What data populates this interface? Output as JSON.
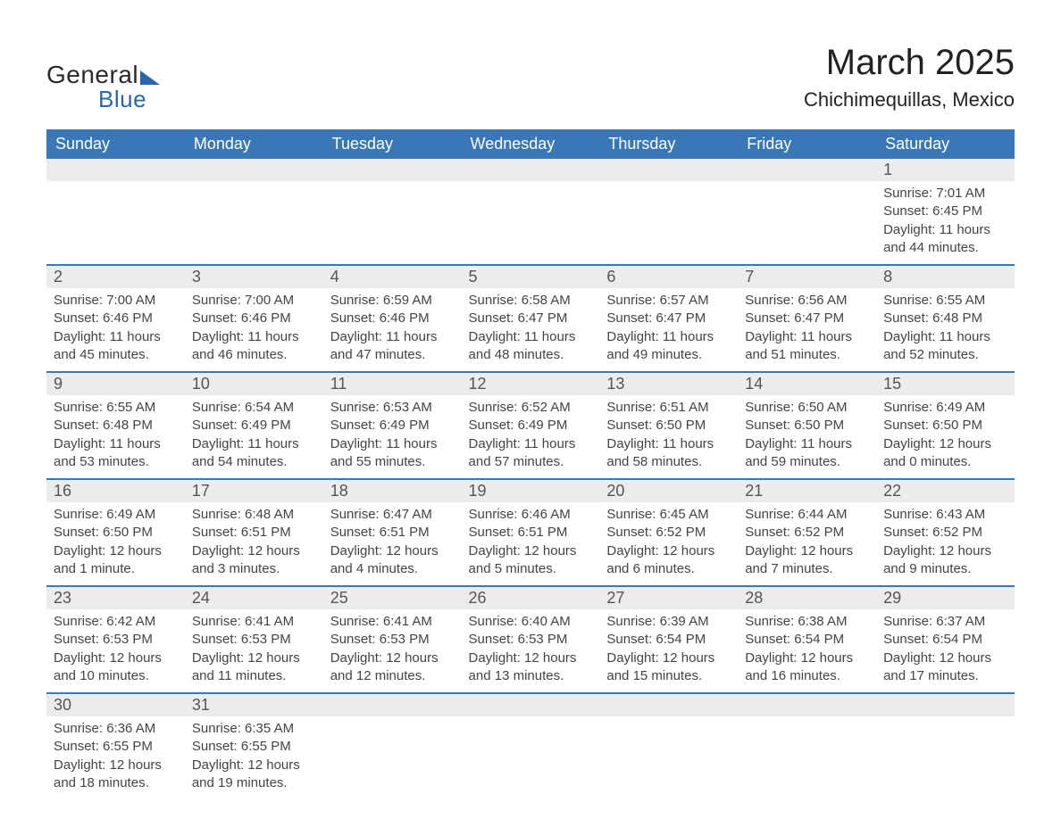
{
  "logo": {
    "word1": "General",
    "word2": "Blue"
  },
  "title": "March 2025",
  "location": "Chichimequillas, Mexico",
  "colors": {
    "header_bg": "#3a77b7",
    "header_fg": "#ffffff",
    "row_separator": "#3a77b7",
    "daynum_bg": "#ececec",
    "text": "#333333",
    "logo_accent": "#2a67a8"
  },
  "typography": {
    "title_fontsize": 40,
    "location_fontsize": 22,
    "weekday_fontsize": 18,
    "daynum_fontsize": 18,
    "body_fontsize": 15
  },
  "weekdays": [
    "Sunday",
    "Monday",
    "Tuesday",
    "Wednesday",
    "Thursday",
    "Friday",
    "Saturday"
  ],
  "weeks": [
    [
      null,
      null,
      null,
      null,
      null,
      null,
      {
        "n": "1",
        "sunrise": "7:01 AM",
        "sunset": "6:45 PM",
        "daylight": "11 hours and 44 minutes."
      }
    ],
    [
      {
        "n": "2",
        "sunrise": "7:00 AM",
        "sunset": "6:46 PM",
        "daylight": "11 hours and 45 minutes."
      },
      {
        "n": "3",
        "sunrise": "7:00 AM",
        "sunset": "6:46 PM",
        "daylight": "11 hours and 46 minutes."
      },
      {
        "n": "4",
        "sunrise": "6:59 AM",
        "sunset": "6:46 PM",
        "daylight": "11 hours and 47 minutes."
      },
      {
        "n": "5",
        "sunrise": "6:58 AM",
        "sunset": "6:47 PM",
        "daylight": "11 hours and 48 minutes."
      },
      {
        "n": "6",
        "sunrise": "6:57 AM",
        "sunset": "6:47 PM",
        "daylight": "11 hours and 49 minutes."
      },
      {
        "n": "7",
        "sunrise": "6:56 AM",
        "sunset": "6:47 PM",
        "daylight": "11 hours and 51 minutes."
      },
      {
        "n": "8",
        "sunrise": "6:55 AM",
        "sunset": "6:48 PM",
        "daylight": "11 hours and 52 minutes."
      }
    ],
    [
      {
        "n": "9",
        "sunrise": "6:55 AM",
        "sunset": "6:48 PM",
        "daylight": "11 hours and 53 minutes."
      },
      {
        "n": "10",
        "sunrise": "6:54 AM",
        "sunset": "6:49 PM",
        "daylight": "11 hours and 54 minutes."
      },
      {
        "n": "11",
        "sunrise": "6:53 AM",
        "sunset": "6:49 PM",
        "daylight": "11 hours and 55 minutes."
      },
      {
        "n": "12",
        "sunrise": "6:52 AM",
        "sunset": "6:49 PM",
        "daylight": "11 hours and 57 minutes."
      },
      {
        "n": "13",
        "sunrise": "6:51 AM",
        "sunset": "6:50 PM",
        "daylight": "11 hours and 58 minutes."
      },
      {
        "n": "14",
        "sunrise": "6:50 AM",
        "sunset": "6:50 PM",
        "daylight": "11 hours and 59 minutes."
      },
      {
        "n": "15",
        "sunrise": "6:49 AM",
        "sunset": "6:50 PM",
        "daylight": "12 hours and 0 minutes."
      }
    ],
    [
      {
        "n": "16",
        "sunrise": "6:49 AM",
        "sunset": "6:50 PM",
        "daylight": "12 hours and 1 minute."
      },
      {
        "n": "17",
        "sunrise": "6:48 AM",
        "sunset": "6:51 PM",
        "daylight": "12 hours and 3 minutes."
      },
      {
        "n": "18",
        "sunrise": "6:47 AM",
        "sunset": "6:51 PM",
        "daylight": "12 hours and 4 minutes."
      },
      {
        "n": "19",
        "sunrise": "6:46 AM",
        "sunset": "6:51 PM",
        "daylight": "12 hours and 5 minutes."
      },
      {
        "n": "20",
        "sunrise": "6:45 AM",
        "sunset": "6:52 PM",
        "daylight": "12 hours and 6 minutes."
      },
      {
        "n": "21",
        "sunrise": "6:44 AM",
        "sunset": "6:52 PM",
        "daylight": "12 hours and 7 minutes."
      },
      {
        "n": "22",
        "sunrise": "6:43 AM",
        "sunset": "6:52 PM",
        "daylight": "12 hours and 9 minutes."
      }
    ],
    [
      {
        "n": "23",
        "sunrise": "6:42 AM",
        "sunset": "6:53 PM",
        "daylight": "12 hours and 10 minutes."
      },
      {
        "n": "24",
        "sunrise": "6:41 AM",
        "sunset": "6:53 PM",
        "daylight": "12 hours and 11 minutes."
      },
      {
        "n": "25",
        "sunrise": "6:41 AM",
        "sunset": "6:53 PM",
        "daylight": "12 hours and 12 minutes."
      },
      {
        "n": "26",
        "sunrise": "6:40 AM",
        "sunset": "6:53 PM",
        "daylight": "12 hours and 13 minutes."
      },
      {
        "n": "27",
        "sunrise": "6:39 AM",
        "sunset": "6:54 PM",
        "daylight": "12 hours and 15 minutes."
      },
      {
        "n": "28",
        "sunrise": "6:38 AM",
        "sunset": "6:54 PM",
        "daylight": "12 hours and 16 minutes."
      },
      {
        "n": "29",
        "sunrise": "6:37 AM",
        "sunset": "6:54 PM",
        "daylight": "12 hours and 17 minutes."
      }
    ],
    [
      {
        "n": "30",
        "sunrise": "6:36 AM",
        "sunset": "6:55 PM",
        "daylight": "12 hours and 18 minutes."
      },
      {
        "n": "31",
        "sunrise": "6:35 AM",
        "sunset": "6:55 PM",
        "daylight": "12 hours and 19 minutes."
      },
      null,
      null,
      null,
      null,
      null
    ]
  ],
  "labels": {
    "sunrise": "Sunrise: ",
    "sunset": "Sunset: ",
    "daylight": "Daylight: "
  }
}
